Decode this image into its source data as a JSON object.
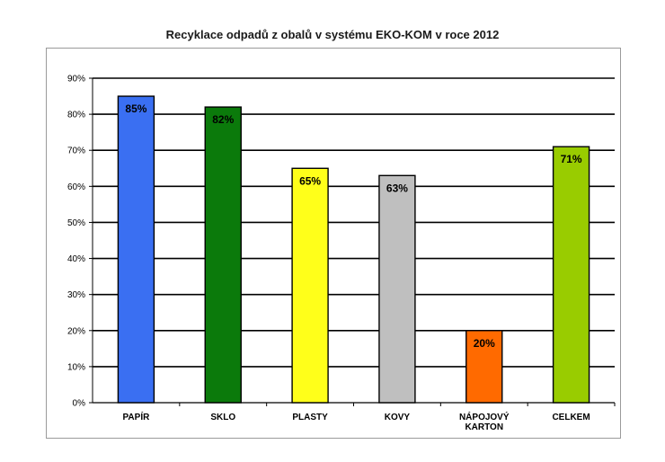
{
  "chart_data": {
    "type": "bar",
    "title": "Recyklace odpadů z obalů v systému EKO-KOM v roce 2012",
    "xlabel": "",
    "ylabel": "",
    "ylim": [
      0,
      90
    ],
    "yticks": [
      "0%",
      "10%",
      "20%",
      "30%",
      "40%",
      "50%",
      "60%",
      "70%",
      "80%",
      "90%"
    ],
    "grid": true,
    "legend": "none",
    "categories": [
      [
        "PAPÍR"
      ],
      [
        "SKLO"
      ],
      [
        "PLASTY"
      ],
      [
        "KOVY"
      ],
      [
        "NÁPOJOVÝ",
        "KARTON"
      ],
      [
        "CELKEM"
      ]
    ],
    "values": [
      85,
      82,
      65,
      63,
      20,
      71
    ],
    "data_labels": [
      "85%",
      "82%",
      "65%",
      "63%",
      "20%",
      "71%"
    ],
    "colors": [
      "#3a6ff2",
      "#0b7a0b",
      "#ffff1a",
      "#bfbfbf",
      "#ff6a00",
      "#99cc00"
    ]
  }
}
